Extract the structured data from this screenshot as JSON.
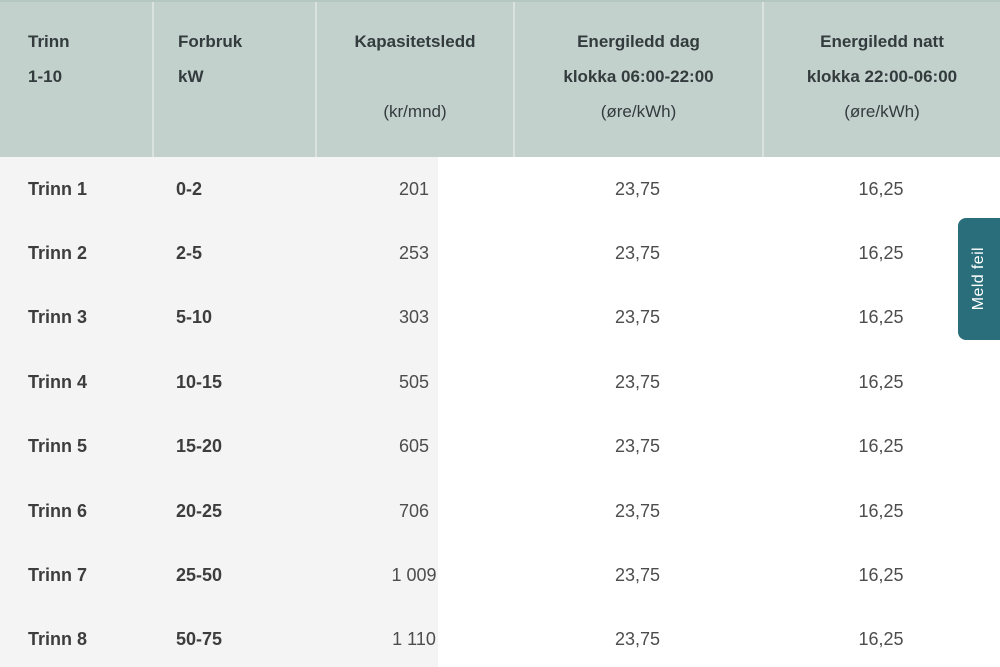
{
  "table": {
    "header": {
      "columns": [
        {
          "title": "Trinn",
          "line2": "1-10",
          "line3": ""
        },
        {
          "title": "Forbruk",
          "line2": "kW",
          "line3": ""
        },
        {
          "title": "Kapasitetsledd",
          "line2": "",
          "line3": "(kr/mnd)"
        },
        {
          "title": "Energiledd dag",
          "line2": "klokka 06:00-22:00",
          "line3": "(øre/kWh)"
        },
        {
          "title": "Energiledd natt",
          "line2": "klokka 22:00-06:00",
          "line3": "(øre/kWh)"
        }
      ]
    },
    "rows": [
      {
        "trinn": "Trinn 1",
        "forbruk": "0-2",
        "kapasitetsledd": "201",
        "energiledd_dag": "23,75",
        "energiledd_natt": "16,25"
      },
      {
        "trinn": "Trinn 2",
        "forbruk": "2-5",
        "kapasitetsledd": "253",
        "energiledd_dag": "23,75",
        "energiledd_natt": "16,25"
      },
      {
        "trinn": "Trinn 3",
        "forbruk": "5-10",
        "kapasitetsledd": "303",
        "energiledd_dag": "23,75",
        "energiledd_natt": "16,25"
      },
      {
        "trinn": "Trinn 4",
        "forbruk": "10-15",
        "kapasitetsledd": "505",
        "energiledd_dag": "23,75",
        "energiledd_natt": "16,25"
      },
      {
        "trinn": "Trinn 5",
        "forbruk": "15-20",
        "kapasitetsledd": "605",
        "energiledd_dag": "23,75",
        "energiledd_natt": "16,25"
      },
      {
        "trinn": "Trinn 6",
        "forbruk": "20-25",
        "kapasitetsledd": "706",
        "energiledd_dag": "23,75",
        "energiledd_natt": "16,25"
      },
      {
        "trinn": "Trinn 7",
        "forbruk": "25-50",
        "kapasitetsledd": "1 009",
        "energiledd_dag": "23,75",
        "energiledd_natt": "16,25"
      },
      {
        "trinn": "Trinn 8",
        "forbruk": "50-75",
        "kapasitetsledd": "1 110",
        "energiledd_dag": "23,75",
        "energiledd_natt": "16,25"
      }
    ]
  },
  "feedback_button": {
    "label": "Meld feil"
  },
  "colors": {
    "header_bg": "#c3d1cd",
    "left_panel_bg": "#f4f4f4",
    "accent_teal": "#2a6e7b",
    "header_text": "#333b3d",
    "body_text": "#4d4d4d"
  }
}
